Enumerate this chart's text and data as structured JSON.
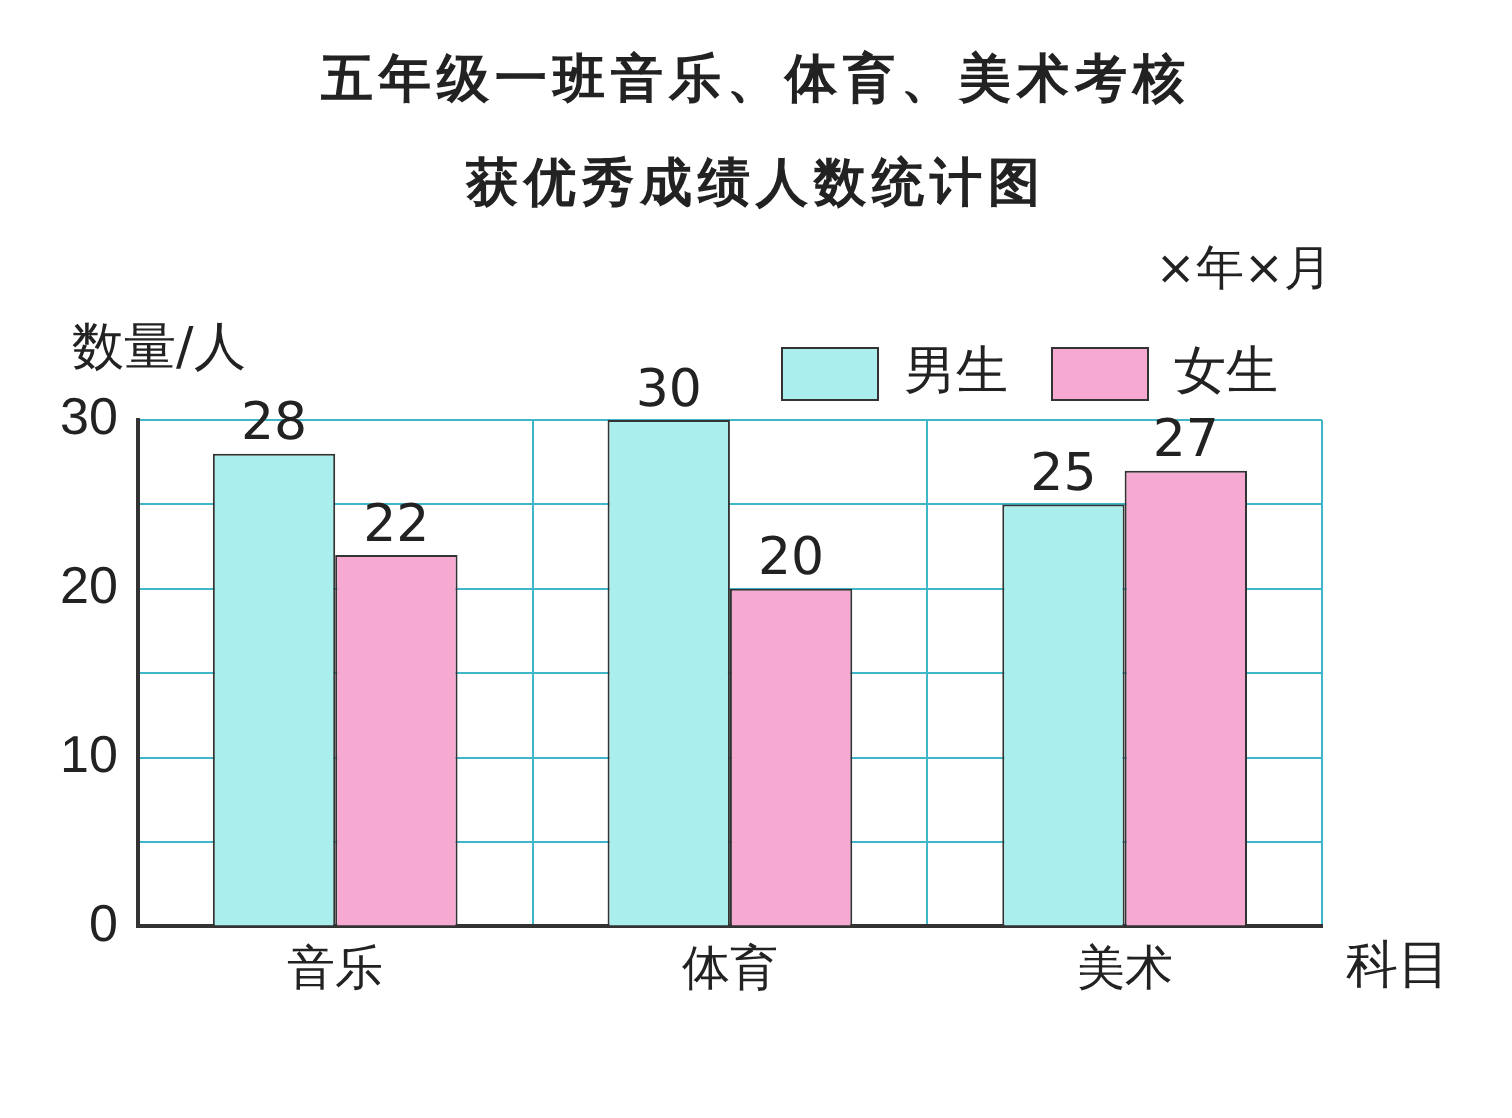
{
  "chart_data": {
    "type": "bar",
    "title": "五年级一班音乐、体育、美术考核获优秀成绩人数统计图",
    "subtitle": "×年×月",
    "xlabel": "科目",
    "ylabel": "数量/人",
    "categories": [
      "音乐",
      "体育",
      "美术"
    ],
    "series": [
      {
        "name": "男生",
        "color": "#aaeeee",
        "values": [
          28,
          30,
          25
        ]
      },
      {
        "name": "女生",
        "color": "#f6aad2",
        "values": [
          22,
          20,
          27
        ]
      }
    ],
    "ylim": [
      0,
      30
    ],
    "yticks": [
      0,
      {
        "value": 5,
        "label": null
      },
      10,
      {
        "value": 15,
        "label": null
      },
      20,
      {
        "value": 25,
        "label": null
      },
      30
    ],
    "grid": true,
    "legend": "top right",
    "data_labels": true
  }
}
